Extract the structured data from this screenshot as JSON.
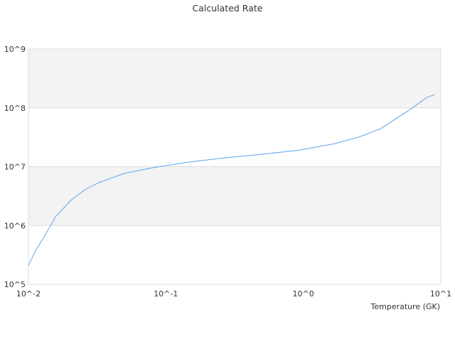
{
  "chart_data": {
    "type": "line",
    "title": "Calculated Rate",
    "xlabel": "Temperature (GK)",
    "ylabel": "",
    "xscale": "log",
    "yscale": "log",
    "xlim": [
      0.01,
      10
    ],
    "ylim": [
      100000,
      1000000000
    ],
    "x_tick_labels": [
      "10^-2",
      "10^-1",
      "10^0",
      "10^1"
    ],
    "y_tick_labels": [
      "10^5",
      "10^6",
      "10^7",
      "10^8",
      "10^9"
    ],
    "grid": true,
    "alternating_bands": true,
    "colors": {
      "line": "#5ea3ea",
      "band": "#f3f3f3",
      "grid": "#dddddd"
    },
    "series": [
      {
        "x": [
          0.01,
          0.0113,
          0.013,
          0.0159,
          0.0204,
          0.0259,
          0.0329,
          0.0499,
          0.0803,
          0.137,
          0.249,
          0.509,
          0.924,
          1.68,
          2.55,
          3.64,
          6.22,
          7.9,
          9.1
        ],
        "y": [
          210000,
          380000,
          640000,
          1450000,
          2700000,
          4100000,
          5400000,
          7700000,
          9600000,
          11700000,
          13900000,
          16300000,
          19000000,
          24600000,
          32000000,
          44000000,
          100000000,
          150000000,
          170000000
        ]
      }
    ]
  }
}
